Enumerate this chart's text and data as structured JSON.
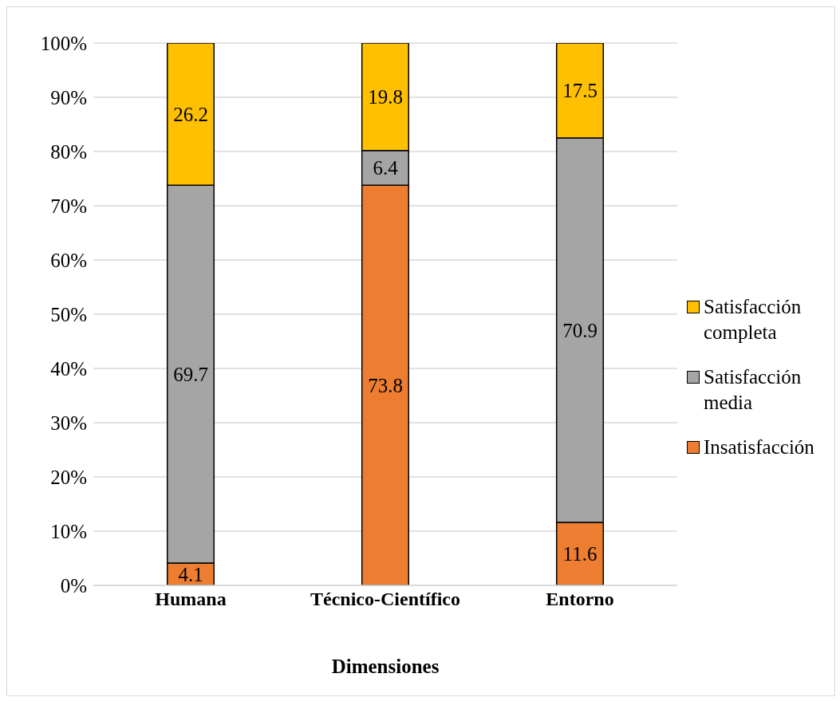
{
  "chart_data": {
    "type": "bar",
    "stacked": true,
    "xlabel": "Dimensiones",
    "categories": [
      "Humana",
      "Técnico-Científico",
      "Entorno"
    ],
    "series": [
      {
        "name": "Insatisfacción",
        "color": "#ed7d31",
        "values": [
          4.1,
          73.8,
          11.6
        ]
      },
      {
        "name": "Satisfacción media",
        "color": "#a5a5a5",
        "values": [
          69.7,
          6.4,
          70.9
        ]
      },
      {
        "name": "Satisfacción completa",
        "color": "#ffc000",
        "values": [
          26.2,
          19.8,
          17.5
        ]
      }
    ],
    "ylim": [
      0,
      100
    ],
    "yticks": [
      {
        "value": 0,
        "label": "0%"
      },
      {
        "value": 10,
        "label": "10%"
      },
      {
        "value": 20,
        "label": "20%"
      },
      {
        "value": 30,
        "label": "30%"
      },
      {
        "value": 40,
        "label": "40%"
      },
      {
        "value": 50,
        "label": "50%"
      },
      {
        "value": 60,
        "label": "60%"
      },
      {
        "value": 70,
        "label": "70%"
      },
      {
        "value": 80,
        "label": "80%"
      },
      {
        "value": 90,
        "label": "90%"
      },
      {
        "value": 100,
        "label": "100%"
      }
    ],
    "grid": "y",
    "legend": "right",
    "data_labels": true
  }
}
